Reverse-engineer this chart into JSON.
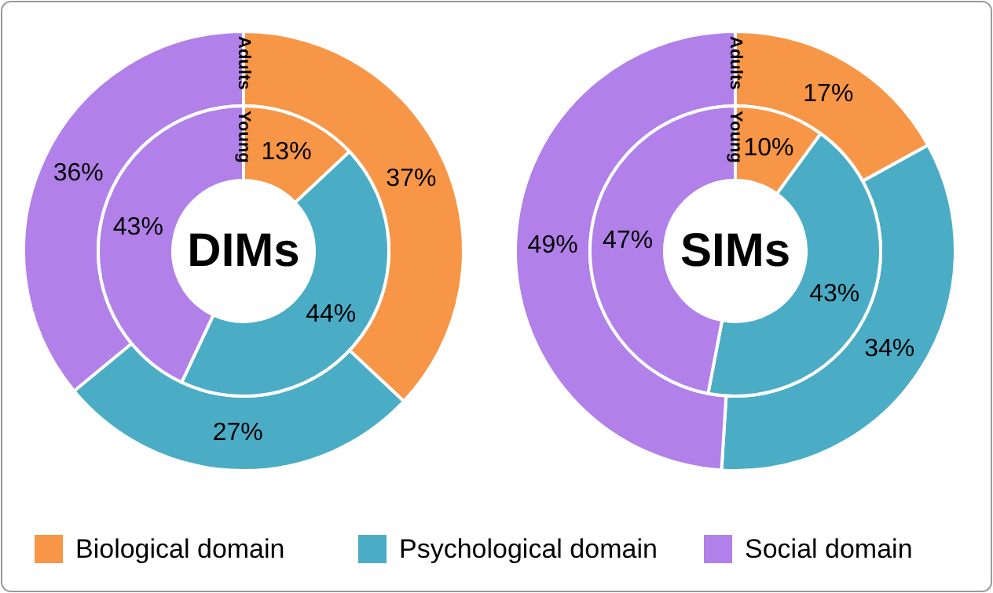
{
  "chart_data": [
    {
      "type": "donut",
      "title": "DIMs",
      "categories": [
        "Biological domain",
        "Psychological domain",
        "Social domain"
      ],
      "colors": [
        "#f79646",
        "#4bacc6",
        "#b180e8"
      ],
      "legend": "bottom",
      "series": [
        {
          "name": "Adults",
          "values": [
            37,
            27,
            36
          ],
          "value_labels": [
            "37%",
            "27%",
            "36%"
          ]
        },
        {
          "name": "Young",
          "values": [
            13,
            44,
            43
          ],
          "value_labels": [
            "13%",
            "44%",
            "43%"
          ]
        }
      ]
    },
    {
      "type": "donut",
      "title": "SIMs",
      "categories": [
        null,
        null,
        null
      ],
      "colors": [
        "#f79646",
        "#4bacc6",
        "#b180e8"
      ],
      "series": [
        {
          "name": "Adults",
          "values": [
            17,
            34,
            49
          ],
          "value_labels": [
            "17%",
            "34%",
            "49%"
          ]
        },
        {
          "name": "Young",
          "values": [
            10,
            43,
            47
          ],
          "value_labels": [
            "10%",
            "43%",
            "47%"
          ]
        }
      ]
    }
  ]
}
